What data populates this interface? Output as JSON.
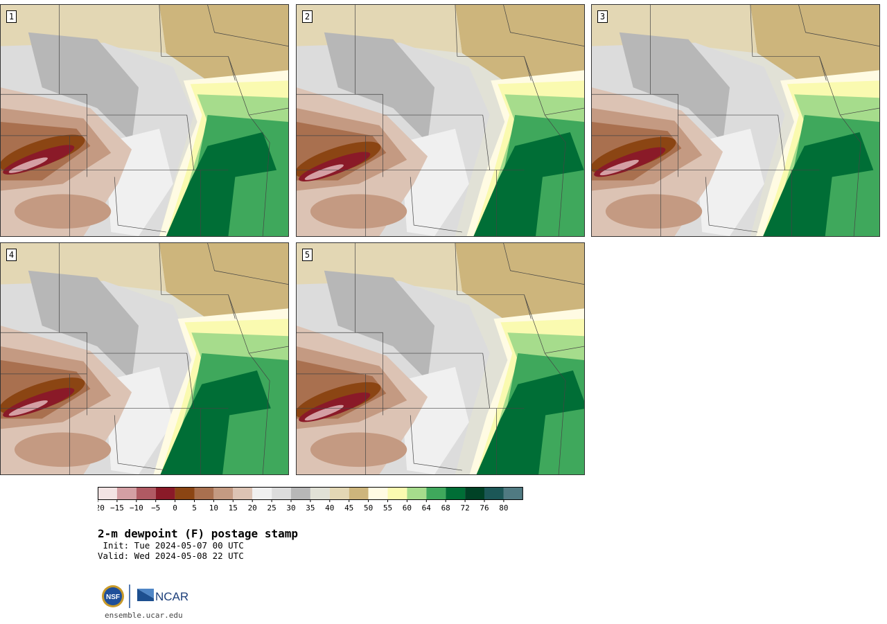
{
  "product": {
    "title": "2-m dewpoint (F) postage stamp",
    "init": " Init: Tue 2024-05-07 00 UTC",
    "valid": "Valid: Wed 2024-05-08 22 UTC"
  },
  "panels": [
    {
      "label": "1",
      "moist_offset": 0.0,
      "dry_shift": 0.0
    },
    {
      "label": "2",
      "moist_offset": 0.04,
      "dry_shift": 0.03
    },
    {
      "label": "3",
      "moist_offset": 0.02,
      "dry_shift": 0.01
    },
    {
      "label": "4",
      "moist_offset": -0.02,
      "dry_shift": 0.02
    },
    {
      "label": "5",
      "moist_offset": 0.05,
      "dry_shift": 0.04
    }
  ],
  "colorbar": {
    "tick_labels": [
      "−20",
      "−15",
      "−10",
      "−5",
      "0",
      "5",
      "10",
      "15",
      "20",
      "25",
      "30",
      "35",
      "40",
      "45",
      "50",
      "55",
      "60",
      "64",
      "68",
      "72",
      "76",
      "80"
    ],
    "colors": [
      "#f3e4e4",
      "#d49fa4",
      "#b05a63",
      "#8a1a28",
      "#8b4513",
      "#a9704f",
      "#c49a82",
      "#dcc3b4",
      "#f0f0f0",
      "#dcdcdc",
      "#b7b7b7",
      "#e1e1d6",
      "#e3d7b4",
      "#cdb57c",
      "#fffbe3",
      "#fafab0",
      "#a6dc8c",
      "#3fa85c",
      "#006e36",
      "#004226",
      "#1c5757",
      "#507a82"
    ]
  },
  "credits": {
    "nsf_text": "NSF",
    "ncar_text": "NCAR",
    "url": "ensemble.ucar.edu"
  }
}
